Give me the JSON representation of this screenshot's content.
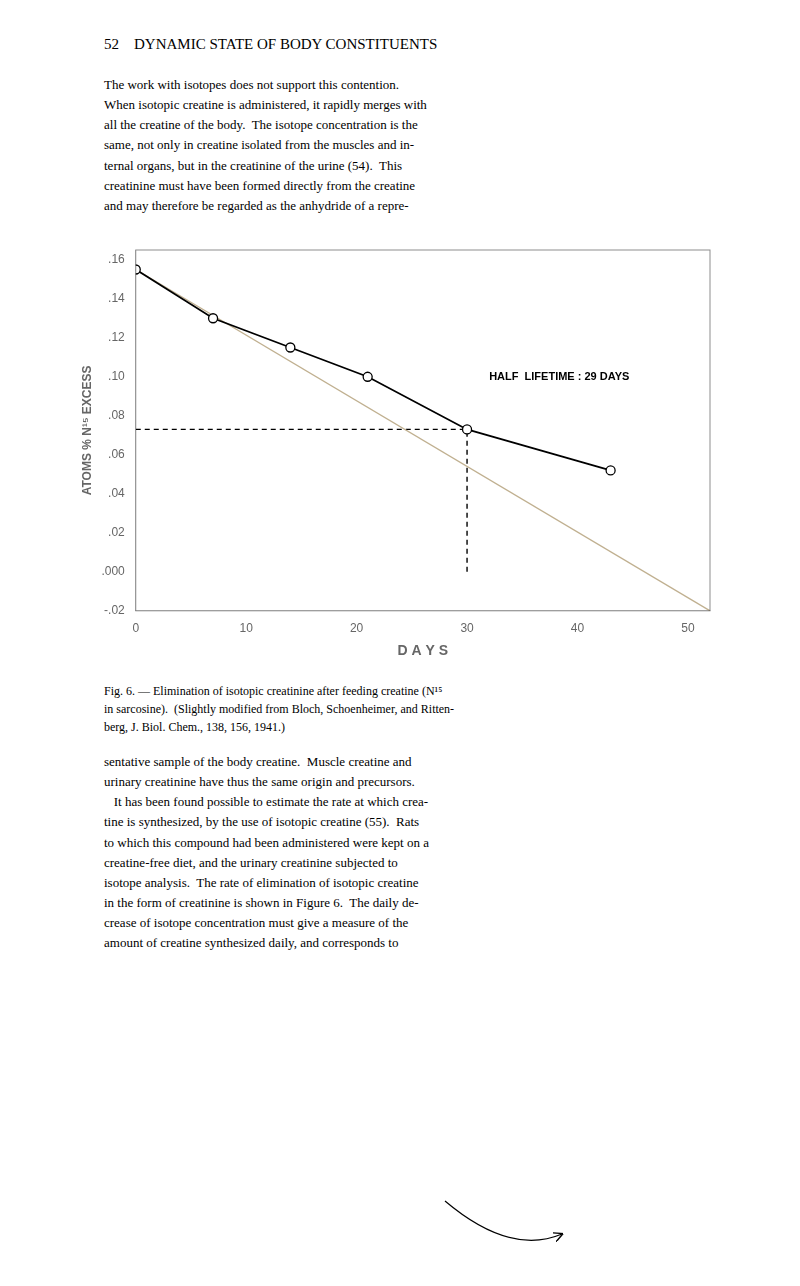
{
  "chart_data": {
    "type": "line",
    "header": "52    DYNAMIC STATE OF BODY CONSTITUENTS",
    "top_text": "The work with isotopes does not support this contention.\nWhen isotopic creatine is administered, it rapidly merges with\nall the creatine of the body.  The isotope concentration is the\nsame, not only in creatine isolated from the muscles and in-\nternal organs, but in the creatinine of the urine (54).  This\ncreatinine must have been formed directly from the creatine\nand may therefore be regarded as the anhydride of a repre-",
    "caption": "Fig. 6. — Elimination of isotopic creatinine after feeding creatine (N¹⁵\nin sarcosine).  (Slightly modified from Bloch, Schoenheimer, and Ritten-\nberg, J. Biol. Chem., 138, 156, 1941.)",
    "bottom_text": "sentative sample of the body creatine.  Muscle creatine and\nurinary creatinine have thus the same origin and precursors.\n   It has been found possible to estimate the rate at which crea-\ntine is synthesized, by the use of isotopic creatine (55).  Rats\nto which this compound had been administered were kept on a\ncreatine-free diet, and the urinary creatinine subjected to\nisotope analysis.  The rate of elimination of isotopic creatine\nin the form of creatinine is shown in Figure 6.  The daily de-\ncrease of isotope concentration must give a measure of the\namount of creatine synthesized daily, and corresponds to",
    "xlabel": "D A Y S",
    "ylabel": "ATOMS % N¹⁵ EXCESS",
    "xlim": [
      0,
      52
    ],
    "ylim": [
      -0.02,
      0.165
    ],
    "xticks": [
      0,
      10,
      20,
      30,
      40,
      50
    ],
    "yticks": [
      {
        "value": -0.02,
        "label": "-.02"
      },
      {
        "value": 0.0,
        "label": ".000"
      },
      {
        "value": 0.02,
        "label": ".02"
      },
      {
        "value": 0.04,
        "label": ".04"
      },
      {
        "value": 0.06,
        "label": ".06"
      },
      {
        "value": 0.08,
        "label": ".08"
      },
      {
        "value": 0.1,
        "label": ".10"
      },
      {
        "value": 0.12,
        "label": ".12"
      },
      {
        "value": 0.14,
        "label": ".14"
      },
      {
        "value": 0.16,
        "label": ".16"
      }
    ],
    "grid": false,
    "series": [
      {
        "type": "line",
        "color": "#c0b090",
        "line_style": "solid",
        "x": [
          0,
          52
        ],
        "values": [
          0.155,
          -0.02
        ]
      },
      {
        "type": "line",
        "color": "#000000",
        "line_style": "solid",
        "marker": "open_circle",
        "x": [
          0,
          7,
          14,
          21,
          30,
          43
        ],
        "values": [
          0.155,
          0.13,
          0.115,
          0.1,
          0.073,
          0.052
        ]
      },
      {
        "type": "line",
        "color": "#000000",
        "line_style": "dashed",
        "x": [
          0,
          30
        ],
        "values": [
          0.073,
          0.073
        ]
      },
      {
        "type": "line",
        "color": "#000000",
        "line_style": "dashed",
        "x": [
          30,
          30
        ],
        "values": [
          0,
          0.073
        ]
      }
    ],
    "annotations": [
      {
        "text": "HALF  LIFETIME : 29 DAYS",
        "x": 32,
        "y": 0.1
      }
    ]
  }
}
